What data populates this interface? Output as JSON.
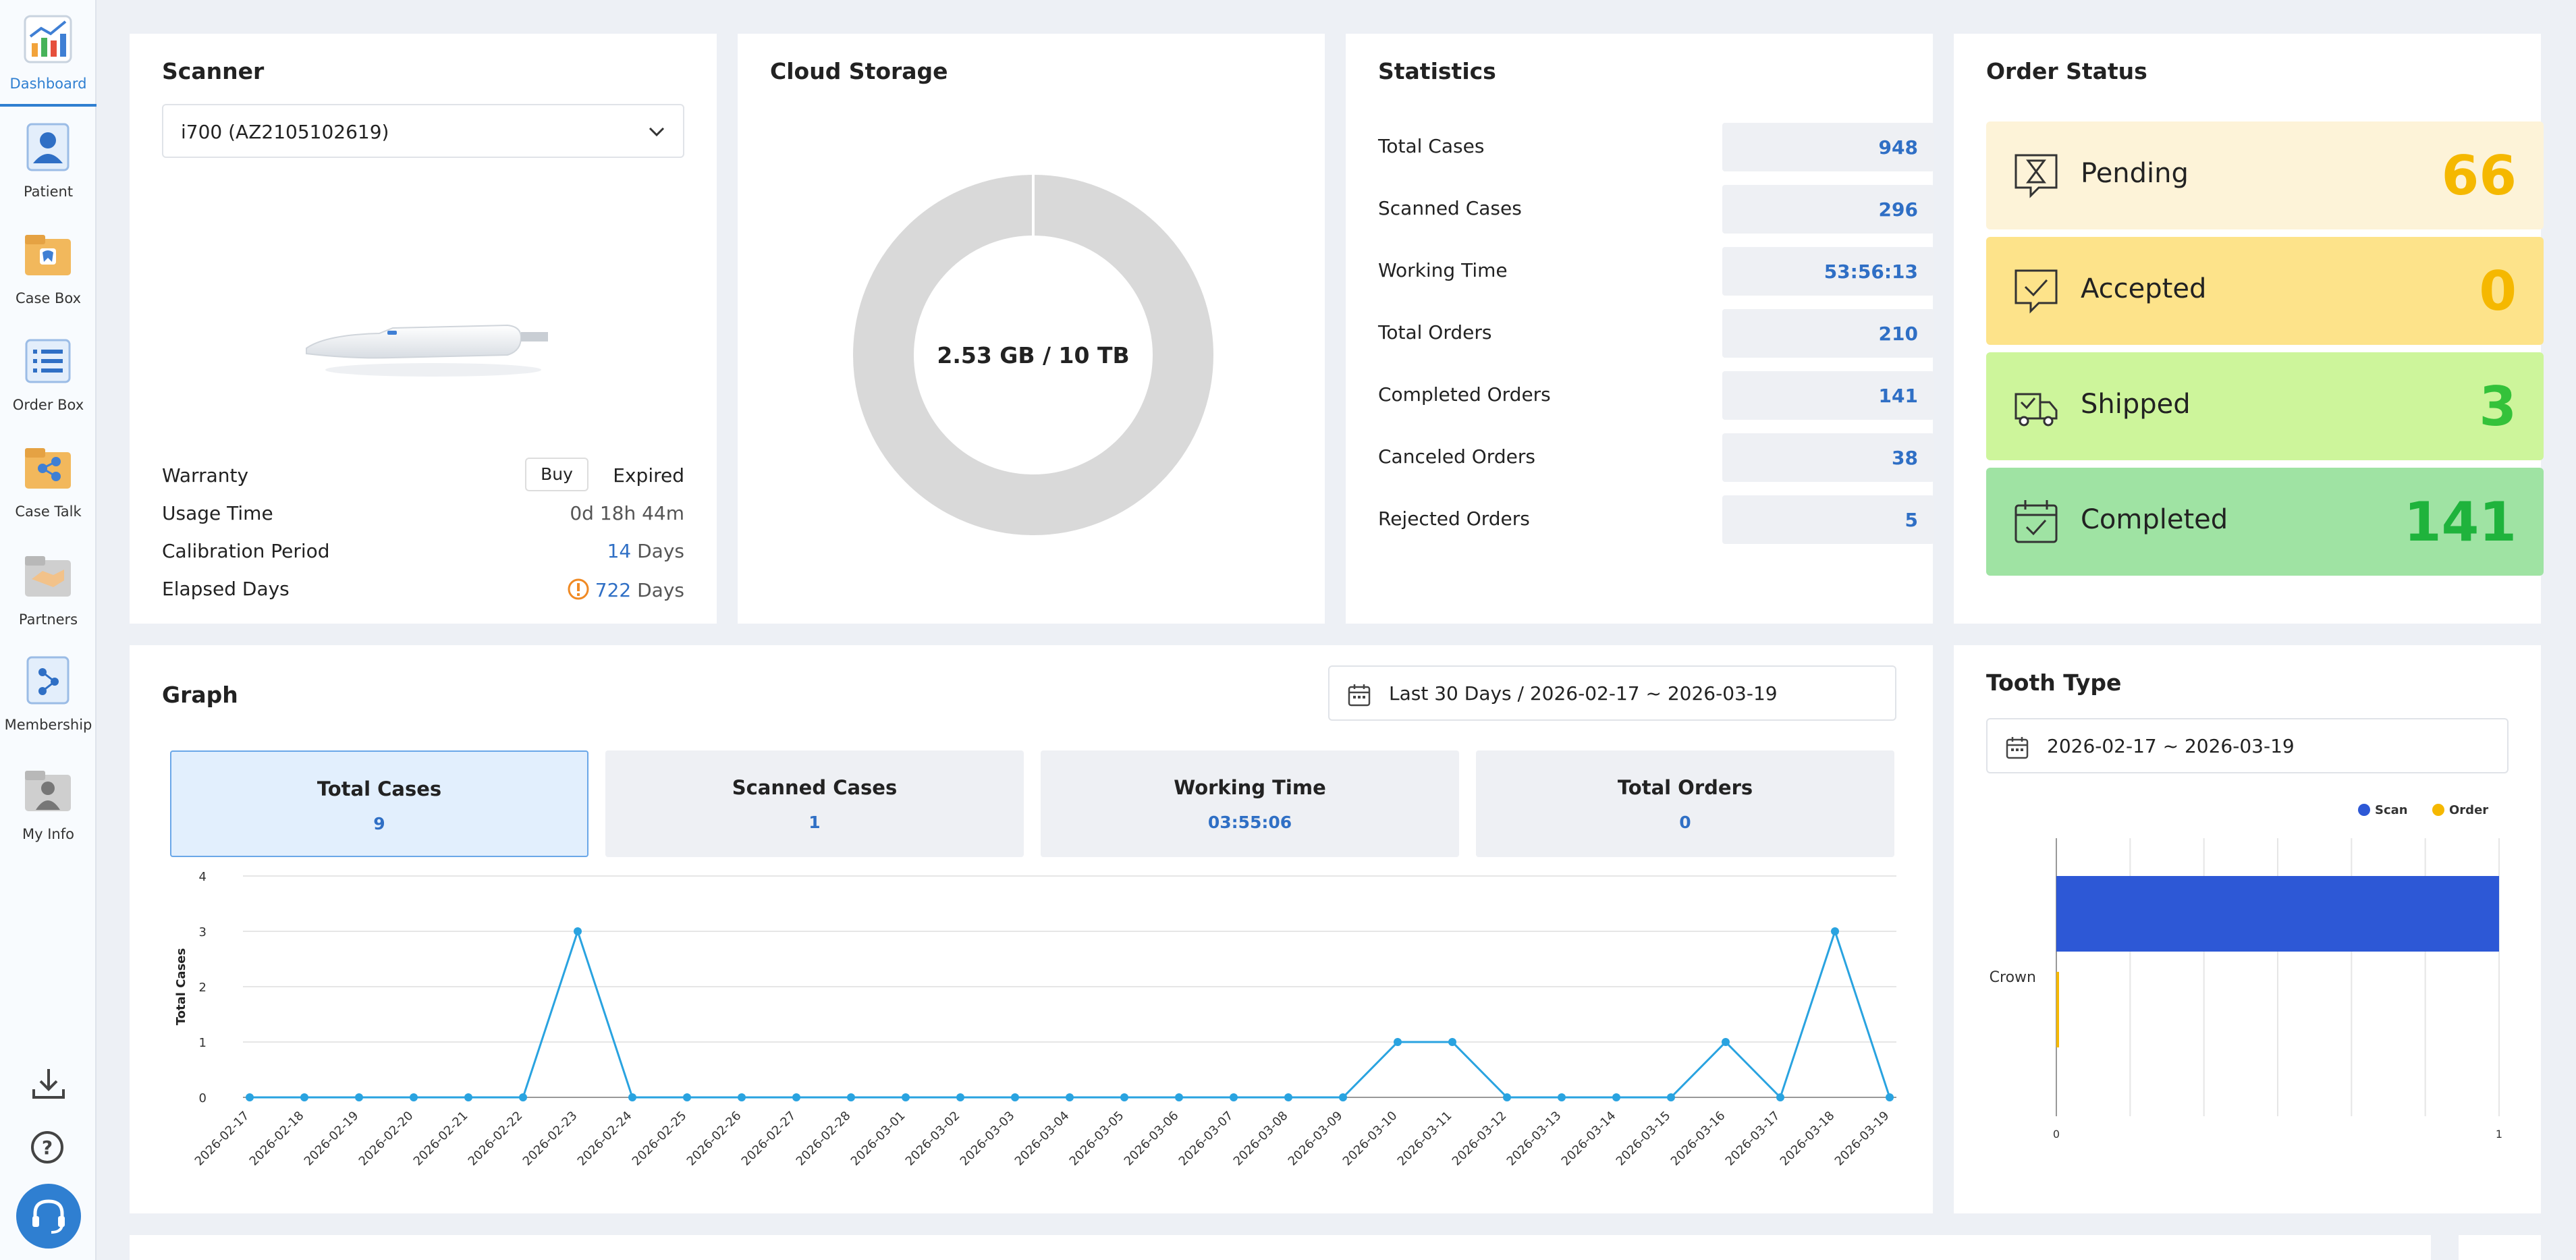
{
  "nav": [
    {
      "label": "Dashboard",
      "icon": "dashboard-chart-icon"
    },
    {
      "label": "Patient",
      "icon": "patient-icon"
    },
    {
      "label": "Case Box",
      "icon": "case-box-icon"
    },
    {
      "label": "Order Box",
      "icon": "order-box-icon"
    },
    {
      "label": "Case Talk",
      "icon": "case-talk-icon"
    },
    {
      "label": "Partners",
      "icon": "partners-handshake-icon"
    },
    {
      "label": "Membership",
      "icon": "membership-icon"
    },
    {
      "label": "My Info",
      "icon": "my-info-icon"
    }
  ],
  "scanner": {
    "title": "Scanner",
    "selected": "i700 (AZ2105102619)",
    "warranty_label": "Warranty",
    "buy_label": "Buy",
    "warranty_value": "Expired",
    "usage_label": "Usage Time",
    "usage_value": "0d 18h 44m",
    "calibration_label": "Calibration Period",
    "calibration_value": "14",
    "calibration_unit": "Days",
    "elapsed_label": "Elapsed Days",
    "elapsed_value": "722",
    "elapsed_unit": "Days"
  },
  "storage": {
    "title": "Cloud Storage",
    "usage": "2.53 GB / 10 TB",
    "used_fraction": 0.000253
  },
  "statistics": {
    "title": "Statistics",
    "rows": [
      {
        "label": "Total Cases",
        "value": "948"
      },
      {
        "label": "Scanned Cases",
        "value": "296"
      },
      {
        "label": "Working Time",
        "value": "53:56:13"
      },
      {
        "label": "Total Orders",
        "value": "210"
      },
      {
        "label": "Completed Orders",
        "value": "141"
      },
      {
        "label": "Canceled Orders",
        "value": "38"
      },
      {
        "label": "Rejected Orders",
        "value": "5"
      }
    ]
  },
  "order_status": {
    "title": "Order Status",
    "items": [
      {
        "label": "Pending",
        "value": "66",
        "bg": "#fdf3d8",
        "color": "#f5b800"
      },
      {
        "label": "Accepted",
        "value": "0",
        "bg": "#fde38a",
        "color": "#f5b800"
      },
      {
        "label": "Shipped",
        "value": "3",
        "bg": "#cdf59b",
        "color": "#34c23a"
      },
      {
        "label": "Completed",
        "value": "141",
        "bg": "#9fe3a3",
        "color": "#1fb33c"
      }
    ]
  },
  "graph": {
    "title": "Graph",
    "range": "Last 30 Days / 2026-02-17 ~ 2026-03-19",
    "tabs": [
      {
        "label": "Total Cases",
        "value": "9"
      },
      {
        "label": "Scanned Cases",
        "value": "1"
      },
      {
        "label": "Working Time",
        "value": "03:55:06"
      },
      {
        "label": "Total Orders",
        "value": "0"
      }
    ]
  },
  "tooth": {
    "title": "Tooth Type",
    "range": "2026-02-17 ~ 2026-03-19"
  },
  "chart_data": [
    {
      "type": "line",
      "ylabel": "Total Cases",
      "ylim": [
        0,
        4
      ],
      "yticks": [
        "0",
        "1",
        "2",
        "3",
        "4"
      ],
      "x": [
        "2026-02-17",
        "2026-02-18",
        "2026-02-19",
        "2026-02-20",
        "2026-02-21",
        "2026-02-22",
        "2026-02-23",
        "2026-02-24",
        "2026-02-25",
        "2026-02-26",
        "2026-02-27",
        "2026-02-28",
        "2026-03-01",
        "2026-03-02",
        "2026-03-03",
        "2026-03-04",
        "2026-03-05",
        "2026-03-06",
        "2026-03-07",
        "2026-03-08",
        "2026-03-09",
        "2026-03-10",
        "2026-03-11",
        "2026-03-12",
        "2026-03-13",
        "2026-03-14",
        "2026-03-15",
        "2026-03-16",
        "2026-03-17",
        "2026-03-18",
        "2026-03-19"
      ],
      "series": [
        {
          "values": [
            0,
            0,
            0,
            0,
            0,
            0,
            3,
            0,
            0,
            0,
            0,
            0,
            0,
            0,
            0,
            0,
            0,
            0,
            0,
            0,
            0,
            1,
            1,
            0,
            0,
            0,
            0,
            1,
            0,
            3,
            0
          ],
          "color": "#29a3e0"
        }
      ]
    },
    {
      "type": "bar",
      "orientation": "horizontal",
      "categories": [
        "Crown"
      ],
      "series": [
        {
          "name": "Scan",
          "values": [
            1
          ],
          "color": "#2d58d6"
        },
        {
          "name": "Order",
          "values": [
            0
          ],
          "color": "#f5b800"
        }
      ],
      "xlim": [
        0,
        1
      ],
      "xticks": [
        "0",
        "1"
      ],
      "legend": "top-right"
    }
  ]
}
